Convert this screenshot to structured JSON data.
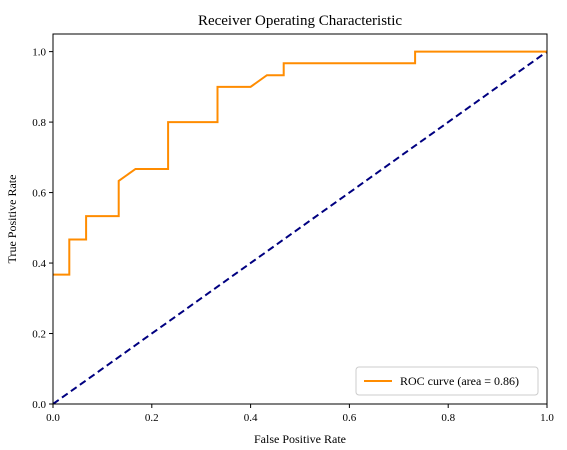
{
  "chart_data": {
    "type": "line",
    "title": "Receiver Operating Characteristic",
    "xlabel": "False Positive Rate",
    "ylabel": "True Positive Rate",
    "xlim": [
      0.0,
      1.0
    ],
    "ylim": [
      0.0,
      1.05
    ],
    "xticks": [
      0.0,
      0.2,
      0.4,
      0.6,
      0.8,
      1.0
    ],
    "xtick_labels": [
      "0.0",
      "0.2",
      "0.4",
      "0.6",
      "0.8",
      "1.0"
    ],
    "yticks": [
      0.0,
      0.2,
      0.4,
      0.6,
      0.8,
      1.0
    ],
    "ytick_labels": [
      "0.0",
      "0.2",
      "0.4",
      "0.6",
      "0.8",
      "1.0"
    ],
    "grid": false,
    "legend_position": "bottom-right",
    "series": [
      {
        "name": "ROC curve (area = 0.86)",
        "color": "#ff8c00",
        "style": "solid",
        "x": [
          0.0,
          0.033,
          0.033,
          0.067,
          0.067,
          0.133,
          0.133,
          0.167,
          0.233,
          0.233,
          0.333,
          0.333,
          0.4,
          0.433,
          0.467,
          0.467,
          0.733,
          0.733,
          1.0
        ],
        "y": [
          0.367,
          0.367,
          0.467,
          0.467,
          0.533,
          0.533,
          0.633,
          0.667,
          0.667,
          0.8,
          0.8,
          0.9,
          0.9,
          0.933,
          0.933,
          0.967,
          0.967,
          1.0,
          1.0
        ]
      },
      {
        "name": "",
        "color": "#000080",
        "style": "dashed",
        "x": [
          0.0,
          1.0
        ],
        "y": [
          0.0,
          1.0
        ]
      }
    ]
  }
}
